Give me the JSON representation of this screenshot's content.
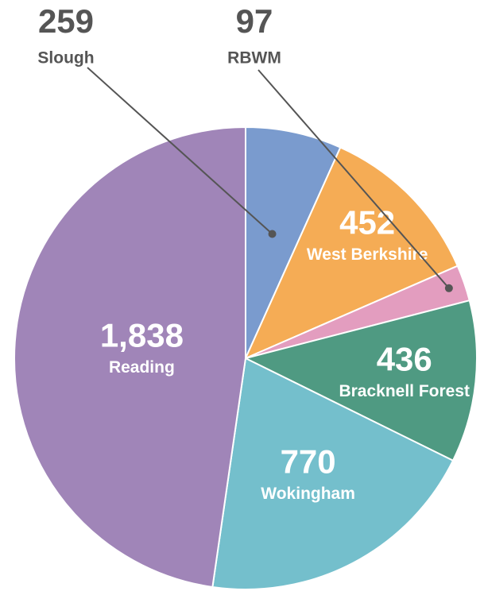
{
  "chart_data": {
    "type": "pie",
    "categories": [
      "Slough",
      "West Berkshire",
      "RBWM",
      "Bracknell Forest",
      "Wokingham",
      "Reading"
    ],
    "values": [
      259,
      452,
      97,
      436,
      770,
      1838
    ],
    "value_labels": [
      "259",
      "452",
      "97",
      "436",
      "770",
      "1,838"
    ],
    "colors": [
      "#7a9bce",
      "#f5ac55",
      "#e39dbf",
      "#4f9a82",
      "#74bfcc",
      "#a085b8"
    ]
  }
}
